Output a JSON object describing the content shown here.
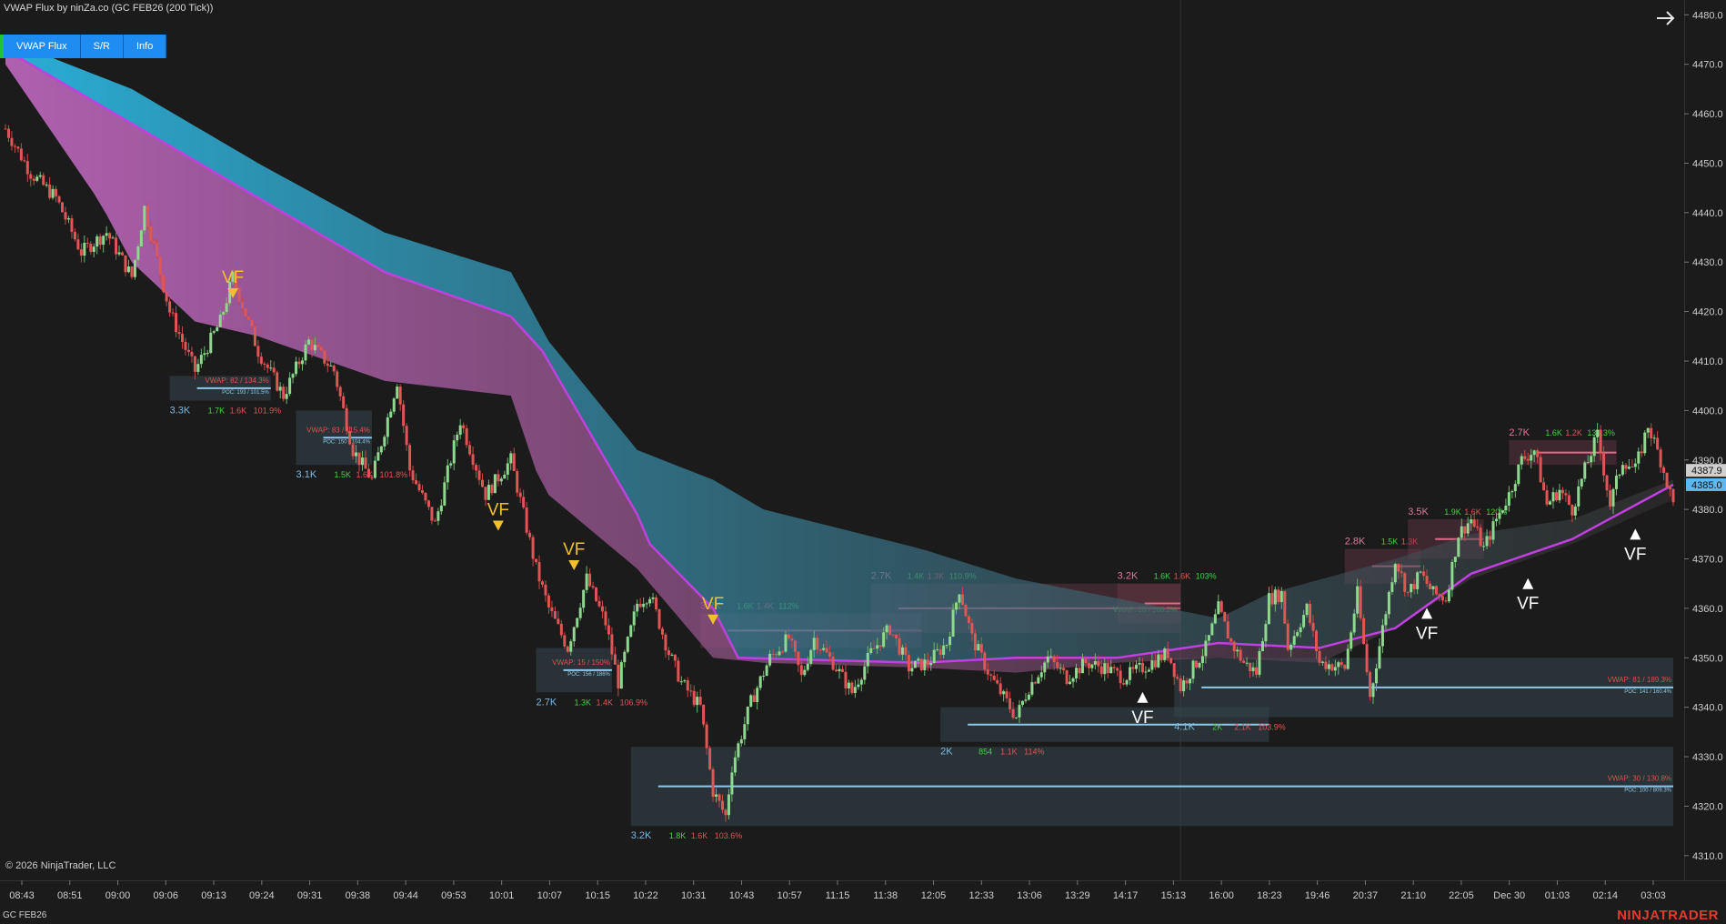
{
  "window": {
    "title": "VWAP Flux by ninZa.co (GC FEB26 (200 Tick))",
    "copyright": "© 2026 NinjaTrader, LLC",
    "instrument": "GC FEB26",
    "logo": "NINJATRADER"
  },
  "toolbar": {
    "buttons": [
      "VWAP Flux",
      "S/R",
      "Info"
    ]
  },
  "icons": {
    "nav": "arrow-right-icon"
  },
  "colors": {
    "background": "#1b1b1b",
    "toolbar_button": "#1e8cf0",
    "bullish": "#8fd88f",
    "bearish": "#e05555",
    "vwap_line": "#c040e0",
    "upper_band": "#2ab6e0",
    "lower_band": "#b25aa8",
    "signal_bear": "#f0c030",
    "signal_bull": "#ffffff",
    "vwap_text": "#e05050",
    "volume_green": "#45d045"
  },
  "chart_data": {
    "type": "candlestick",
    "price_axis": {
      "ticks": [
        "4480.0",
        "4470.0",
        "4460.0",
        "4450.0",
        "4440.0",
        "4430.0",
        "4420.0",
        "4410.0",
        "4400.0",
        "4390.0",
        "4380.0",
        "4370.0",
        "4360.0",
        "4350.0",
        "4340.0",
        "4330.0",
        "4320.0",
        "4310.0"
      ],
      "range": [
        4305,
        4483
      ],
      "current_price_labels": [
        "4387.9",
        "4385.0"
      ]
    },
    "time_axis": {
      "labels": [
        "08:43",
        "08:51",
        "09:00",
        "09:06",
        "09:13",
        "09:24",
        "09:31",
        "09:38",
        "09:44",
        "09:53",
        "10:01",
        "10:07",
        "10:15",
        "10:22",
        "10:31",
        "10:43",
        "10:57",
        "11:15",
        "11:38",
        "12:05",
        "12:33",
        "13:06",
        "13:29",
        "14:17",
        "15:13",
        "16:00",
        "18:23",
        "19:46",
        "20:37",
        "21:10",
        "22:05",
        "Dec 30",
        "01:03",
        "02:14",
        "03:03"
      ]
    },
    "price_path": [
      [
        0,
        4457
      ],
      [
        4,
        4448
      ],
      [
        8,
        4443
      ],
      [
        12,
        4432
      ],
      [
        16,
        4436
      ],
      [
        20,
        4427
      ],
      [
        22,
        4441
      ],
      [
        26,
        4420
      ],
      [
        30,
        4408
      ],
      [
        34,
        4418
      ],
      [
        36,
        4427
      ],
      [
        40,
        4412
      ],
      [
        44,
        4403
      ],
      [
        48,
        4414
      ],
      [
        52,
        4408
      ],
      [
        55,
        4392
      ],
      [
        58,
        4386
      ],
      [
        62,
        4406
      ],
      [
        64,
        4388
      ],
      [
        68,
        4377
      ],
      [
        72,
        4398
      ],
      [
        76,
        4383
      ],
      [
        80,
        4390
      ],
      [
        84,
        4368
      ],
      [
        86,
        4360
      ],
      [
        89,
        4352
      ],
      [
        92,
        4366
      ],
      [
        95,
        4357
      ],
      [
        97,
        4345
      ],
      [
        100,
        4361
      ],
      [
        102,
        4363
      ],
      [
        105,
        4351
      ],
      [
        107,
        4345
      ],
      [
        110,
        4340
      ],
      [
        112,
        4323
      ],
      [
        114,
        4318
      ],
      [
        115,
        4328
      ],
      [
        118,
        4341
      ],
      [
        121,
        4350
      ],
      [
        124,
        4354
      ],
      [
        126,
        4346
      ],
      [
        128,
        4354
      ],
      [
        131,
        4349
      ],
      [
        134,
        4343
      ],
      [
        137,
        4351
      ],
      [
        140,
        4356
      ],
      [
        143,
        4348
      ],
      [
        146,
        4349
      ],
      [
        149,
        4353
      ],
      [
        151,
        4364
      ],
      [
        153,
        4354
      ],
      [
        156,
        4346
      ],
      [
        158,
        4342
      ],
      [
        160,
        4338
      ],
      [
        162,
        4344
      ],
      [
        165,
        4350
      ],
      [
        168,
        4346
      ],
      [
        171,
        4349
      ],
      [
        174,
        4348
      ],
      [
        177,
        4346
      ],
      [
        180,
        4348
      ],
      [
        184,
        4351
      ],
      [
        186,
        4344
      ],
      [
        188,
        4348
      ],
      [
        190,
        4352
      ],
      [
        192,
        4360
      ],
      [
        194,
        4353
      ],
      [
        196,
        4349
      ],
      [
        198,
        4347
      ],
      [
        200,
        4362
      ],
      [
        202,
        4363
      ],
      [
        203,
        4352
      ],
      [
        206,
        4360
      ],
      [
        208,
        4349
      ],
      [
        212,
        4348
      ],
      [
        214,
        4363
      ],
      [
        216,
        4342
      ],
      [
        220,
        4370
      ],
      [
        222,
        4363
      ],
      [
        224,
        4367
      ],
      [
        226,
        4363
      ],
      [
        228,
        4362
      ],
      [
        230,
        4375
      ],
      [
        232,
        4378
      ],
      [
        234,
        4372
      ],
      [
        236,
        4378
      ],
      [
        238,
        4383
      ],
      [
        240,
        4390
      ],
      [
        242,
        4392
      ],
      [
        244,
        4381
      ],
      [
        246,
        4384
      ],
      [
        248,
        4380
      ],
      [
        250,
        4388
      ],
      [
        252,
        4395
      ],
      [
        254,
        4381
      ],
      [
        256,
        4390
      ],
      [
        258,
        4388
      ],
      [
        260,
        4397
      ],
      [
        262,
        4390
      ],
      [
        264,
        4381
      ]
    ],
    "bands": {
      "vwap": [
        [
          0,
          4473
        ],
        [
          60,
          4428
        ],
        [
          80,
          4419
        ],
        [
          85,
          4412
        ],
        [
          100,
          4379
        ],
        [
          102,
          4373
        ],
        [
          112,
          4360
        ],
        [
          116,
          4350
        ],
        [
          145,
          4349
        ],
        [
          160,
          4350
        ],
        [
          176,
          4350
        ],
        [
          192,
          4353
        ],
        [
          208,
          4352
        ],
        [
          220,
          4356
        ],
        [
          232,
          4367
        ],
        [
          248,
          4374
        ],
        [
          264,
          4385
        ]
      ],
      "upper": [
        [
          0,
          4475
        ],
        [
          20,
          4465
        ],
        [
          40,
          4450
        ],
        [
          60,
          4436
        ],
        [
          80,
          4428
        ],
        [
          86,
          4414
        ],
        [
          100,
          4392
        ],
        [
          112,
          4386
        ],
        [
          120,
          4380
        ],
        [
          145,
          4372
        ],
        [
          160,
          4366
        ],
        [
          176,
          4362
        ],
        [
          192,
          4358
        ],
        [
          200,
          4363
        ],
        [
          220,
          4370
        ],
        [
          232,
          4375
        ],
        [
          248,
          4378
        ],
        [
          264,
          4386
        ]
      ],
      "lower": [
        [
          0,
          4470
        ],
        [
          15,
          4442
        ],
        [
          20,
          4430
        ],
        [
          30,
          4418
        ],
        [
          40,
          4415
        ],
        [
          60,
          4406
        ],
        [
          80,
          4403
        ],
        [
          85,
          4384
        ],
        [
          100,
          4368
        ],
        [
          112,
          4350
        ],
        [
          120,
          4349
        ],
        [
          145,
          4348
        ],
        [
          160,
          4347
        ],
        [
          176,
          4349
        ],
        [
          192,
          4350
        ],
        [
          208,
          4349
        ],
        [
          220,
          4356
        ],
        [
          232,
          4366
        ],
        [
          248,
          4373
        ],
        [
          264,
          4382
        ]
      ]
    },
    "signals": [
      {
        "label": "VF",
        "dir": "bear",
        "x": 36,
        "price": 4424
      },
      {
        "label": "VF",
        "dir": "bear",
        "x": 78,
        "price": 4377
      },
      {
        "label": "VF",
        "dir": "bear",
        "x": 90,
        "price": 4369
      },
      {
        "label": "VF",
        "dir": "bear",
        "x": 112,
        "price": 4358
      },
      {
        "label": "VF",
        "dir": "bull",
        "x": 180,
        "price": 4342
      },
      {
        "label": "VF",
        "dir": "bull",
        "x": 225,
        "price": 4359
      },
      {
        "label": "VF",
        "dir": "bull",
        "x": 241,
        "price": 4365
      },
      {
        "label": "VF",
        "dir": "bull",
        "x": 258,
        "price": 4375
      }
    ],
    "zones": [
      {
        "x0": 26,
        "x1": 42,
        "y0": 4402,
        "y1": 4407,
        "count": "3.3K",
        "v1": "1.7K",
        "v2": "1.6K",
        "pct": "101.9%",
        "vwap": "VWAP: 82 / 134.3%",
        "poc": "POC: 193 / 101.5%"
      },
      {
        "x0": 46,
        "x1": 58,
        "y0": 4389,
        "y1": 4400,
        "count": "3.1K",
        "v1": "1.5K",
        "v2": "1.6K",
        "pct": "101.8%",
        "vwap": "VWAP: 83 / 115.4%",
        "poc": "POC: 150 / 104.4%"
      },
      {
        "x0": 84,
        "x1": 96,
        "y0": 4343,
        "y1": 4352,
        "count": "2.7K",
        "v1": "1.3K",
        "v2": "1.4K",
        "pct": "106.9%",
        "vwap": "VWAP: 15 / 150%",
        "poc": "POC: 156 / 186%"
      },
      {
        "x0": 99,
        "x1": 264,
        "y0": 4316,
        "y1": 4332,
        "count": "3.2K",
        "v1": "1.8K",
        "v2": "1.6K",
        "pct": "103.6%",
        "vwap": "VWAP: 30 / 130.8%",
        "poc": "POC: 100 / 809.3%"
      },
      {
        "x0": 148,
        "x1": 200,
        "y0": 4333,
        "y1": 4340,
        "count": "2K",
        "v1": "854",
        "v2": "1.1K",
        "pct": "114%",
        "vwap": "",
        "poc": ""
      },
      {
        "x0": 185,
        "x1": 264,
        "y0": 4338,
        "y1": 4350,
        "count": "4.1K",
        "v1": "2K",
        "v2": "2.1K",
        "pct": "103.9%",
        "vwap": "VWAP: 81 / 189.3%",
        "poc": "POC: 141 / 160.4%"
      }
    ],
    "top_boxes": [
      {
        "x0": 110,
        "x1": 145,
        "y0": 4352,
        "y1": 4359,
        "count": "3.2K",
        "v1": "1.6K",
        "v2": "1.4K",
        "pct": "112%"
      },
      {
        "x0": 137,
        "x1": 186,
        "y0": 4355,
        "y1": 4365,
        "count": "2.7K",
        "v1": "1.4K",
        "v2": "1.3K",
        "pct": "110.9%",
        "vwap": "VWAP: 20 / 100.2%"
      },
      {
        "x0": 176,
        "x1": 186,
        "y0": 4357,
        "y1": 4365,
        "count": "3.2K",
        "v1": "1.6K",
        "v2": "1.6K",
        "pct": "103%"
      },
      {
        "x0": 212,
        "x1": 224,
        "y0": 4365,
        "y1": 4372,
        "count": "2.8K",
        "v1": "1.5K",
        "v2": "1.3K",
        "pct": ""
      },
      {
        "x0": 222,
        "x1": 234,
        "y0": 4370,
        "y1": 4378,
        "count": "3.5K",
        "v1": "1.9K",
        "v2": "1.6K",
        "pct": "120%"
      },
      {
        "x0": 238,
        "x1": 255,
        "y0": 4389,
        "y1": 4394,
        "count": "2.7K",
        "v1": "1.6K",
        "v2": "1.2K",
        "pct": "131.3%"
      }
    ]
  }
}
